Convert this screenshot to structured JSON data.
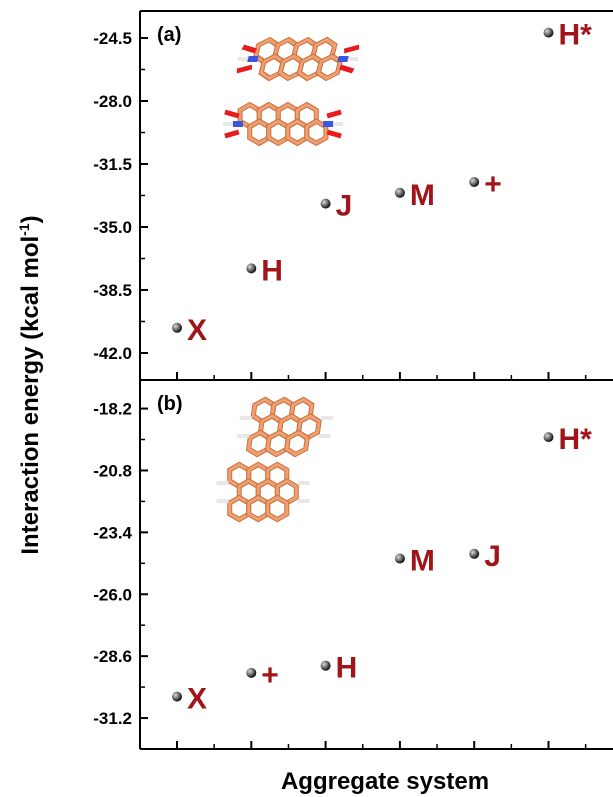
{
  "colors": {
    "label": "#a0141a",
    "axis": "#000000",
    "molecule_carbon": "#f0a070",
    "molecule_edge": "#c9703e",
    "oxygen": "#e81c1c",
    "nitrogen": "#3a55e0",
    "hydrogen": "#e8e8e8"
  },
  "chart_data": {
    "type": "scatter",
    "xlabel": "Aggregate system",
    "ylabel": "Interaction energy (kcal mol",
    "ylabel_sup": "-1",
    "ylabel_end": ")",
    "panels": [
      {
        "tag": "(a)",
        "ylim": [
          -43.5,
          -23.0
        ],
        "yticks": [
          "-24.5",
          "-28.0",
          "-31.5",
          "-35.0",
          "-38.5",
          "-42.0"
        ],
        "ytick_values": [
          -24.5,
          -28.0,
          -31.5,
          -35.0,
          -38.5,
          -42.0
        ],
        "points": [
          {
            "label": "X",
            "x": 1,
            "y": -40.6
          },
          {
            "label": "H",
            "x": 2,
            "y": -37.3
          },
          {
            "label": "J",
            "x": 3,
            "y": -33.7
          },
          {
            "label": "M",
            "x": 4,
            "y": -33.1
          },
          {
            "label": "+",
            "x": 5,
            "y": -32.5
          },
          {
            "label": "H*",
            "x": 6,
            "y": -24.2
          }
        ],
        "molecule": "pdi"
      },
      {
        "tag": "(b)",
        "ylim": [
          -32.5,
          -17.0
        ],
        "yticks": [
          "-18.2",
          "-20.8",
          "-23.4",
          "-26.0",
          "-28.6",
          "-31.2"
        ],
        "ytick_values": [
          -18.2,
          -20.8,
          -23.4,
          -26.0,
          -28.6,
          -31.2
        ],
        "points": [
          {
            "label": "X",
            "x": 1,
            "y": -30.3
          },
          {
            "label": "+",
            "x": 2,
            "y": -29.3
          },
          {
            "label": "H",
            "x": 3,
            "y": -29.0
          },
          {
            "label": "M",
            "x": 4,
            "y": -24.5
          },
          {
            "label": "J",
            "x": 5,
            "y": -24.3
          },
          {
            "label": "H*",
            "x": 6,
            "y": -19.4
          }
        ],
        "molecule": "perylene"
      }
    ]
  }
}
